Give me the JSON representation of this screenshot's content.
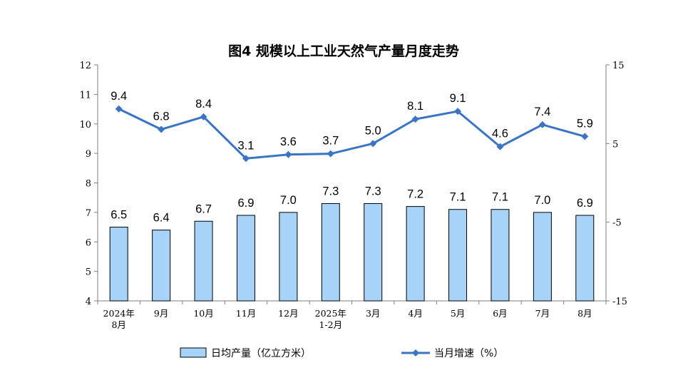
{
  "chart_data": {
    "type": "bar+line",
    "title": "图4  规模以上工业天然气产量月度走势",
    "categories": [
      [
        "2024年",
        "8月"
      ],
      [
        "9月"
      ],
      [
        "10月"
      ],
      [
        "11月"
      ],
      [
        "12月"
      ],
      [
        "2025年",
        "1-2月"
      ],
      [
        "3月"
      ],
      [
        "4月"
      ],
      [
        "5月"
      ],
      [
        "6月"
      ],
      [
        "7月"
      ],
      [
        "8月"
      ]
    ],
    "series": [
      {
        "name": "日均产量（亿立方米）",
        "type": "bar",
        "axis": "left",
        "values": [
          6.5,
          6.4,
          6.7,
          6.9,
          7.0,
          7.3,
          7.3,
          7.2,
          7.1,
          7.1,
          7.0,
          6.9
        ],
        "labels": [
          "6.5",
          "6.4",
          "6.7",
          "6.9",
          "7.0",
          "7.3",
          "7.3",
          "7.2",
          "7.1",
          "7.1",
          "7.0",
          "6.9"
        ]
      },
      {
        "name": "当月增速（%）",
        "type": "line",
        "axis": "right",
        "values": [
          9.4,
          6.8,
          8.4,
          3.1,
          3.6,
          3.7,
          5.0,
          8.1,
          9.1,
          4.6,
          7.4,
          5.9
        ],
        "labels": [
          "9.4",
          "6.8",
          "8.4",
          "3.1",
          "3.6",
          "3.7",
          "5.0",
          "8.1",
          "9.1",
          "4.6",
          "7.4",
          "5.9"
        ]
      }
    ],
    "y_left": {
      "min": 4,
      "max": 12,
      "ticks": [
        "4",
        "5",
        "6",
        "7",
        "8",
        "9",
        "10",
        "11",
        "12"
      ]
    },
    "y_right": {
      "min": -15,
      "max": 15,
      "ticks": [
        "-15",
        "-5",
        "5",
        "15"
      ]
    },
    "grid": false,
    "legend_position": "bottom",
    "colors": {
      "bar_fill": "#a6d3f7",
      "bar_stroke": "#000000",
      "line": "#3a74c4",
      "axis": "#7f7f7f"
    }
  }
}
